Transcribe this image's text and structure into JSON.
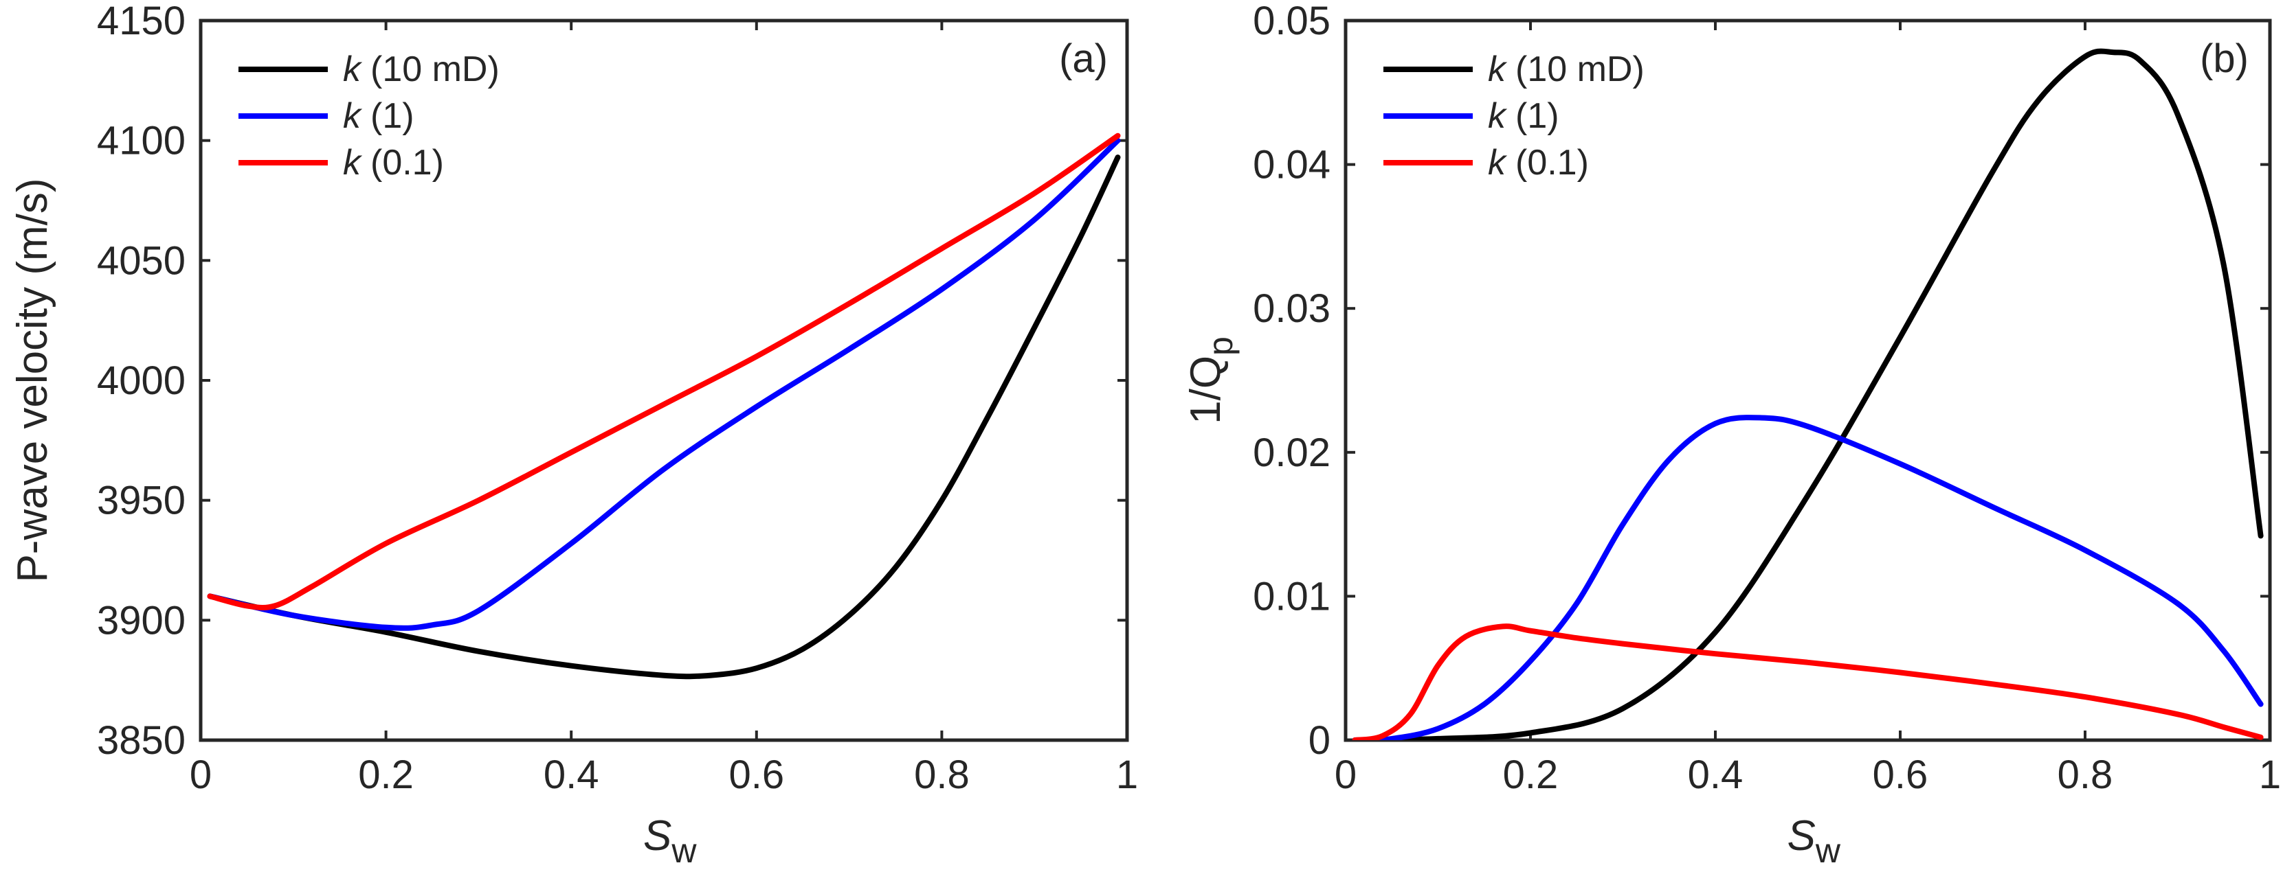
{
  "chart_data": [
    {
      "type": "line",
      "panel_label": "(a)",
      "xlabel": "S",
      "xlabel_sub": "w",
      "ylabel": "P-wave velocity (m/s)",
      "xlim": [
        0,
        1
      ],
      "ylim": [
        3850,
        4150
      ],
      "xticks": [
        0,
        0.2,
        0.4,
        0.6,
        0.8,
        1
      ],
      "xtick_labels": [
        "0",
        "0.2",
        "0.4",
        "0.6",
        "0.8",
        "1"
      ],
      "yticks": [
        3850,
        3900,
        3950,
        4000,
        4050,
        4100,
        4150
      ],
      "ytick_labels": [
        "3850",
        "3900",
        "3950",
        "4000",
        "4050",
        "4100",
        "4150"
      ],
      "legend_position": "top-left",
      "series": [
        {
          "name": "k (10 mD)",
          "legend_k": "k",
          "legend_rest": "(10 mD)",
          "color": "#000000",
          "x": [
            0.01,
            0.1,
            0.2,
            0.3,
            0.4,
            0.5,
            0.55,
            0.6,
            0.65,
            0.7,
            0.75,
            0.8,
            0.85,
            0.9,
            0.95,
            0.99
          ],
          "y": [
            3910,
            3902,
            3895,
            3887,
            3881,
            3877,
            3877,
            3880,
            3888,
            3902,
            3922,
            3950,
            3985,
            4022,
            4060,
            4093
          ]
        },
        {
          "name": "k (1)",
          "legend_k": "k",
          "legend_rest": "(1)",
          "color": "#0000ff",
          "x": [
            0.01,
            0.1,
            0.2,
            0.25,
            0.3,
            0.4,
            0.5,
            0.6,
            0.7,
            0.8,
            0.9,
            0.99
          ],
          "y": [
            3910,
            3902,
            3897,
            3898,
            3904,
            3932,
            3963,
            3989,
            4013,
            4038,
            4067,
            4100
          ]
        },
        {
          "name": "k (0.1)",
          "legend_k": "k",
          "legend_rest": "(0.1)",
          "color": "#ff0000",
          "x": [
            0.01,
            0.05,
            0.08,
            0.12,
            0.2,
            0.3,
            0.4,
            0.5,
            0.6,
            0.7,
            0.8,
            0.9,
            0.99
          ],
          "y": [
            3910,
            3906,
            3906,
            3914,
            3932,
            3950,
            3970,
            3990,
            4010,
            4032,
            4055,
            4078,
            4102
          ]
        }
      ]
    },
    {
      "type": "line",
      "panel_label": "(b)",
      "xlabel": "S",
      "xlabel_sub": "w",
      "ylabel": "1/Q",
      "ylabel_sub": "p",
      "xlim": [
        0,
        1
      ],
      "ylim": [
        0,
        0.05
      ],
      "xticks": [
        0,
        0.2,
        0.4,
        0.6,
        0.8,
        1
      ],
      "xtick_labels": [
        "0",
        "0.2",
        "0.4",
        "0.6",
        "0.8",
        "1"
      ],
      "yticks": [
        0,
        0.01,
        0.02,
        0.03,
        0.04,
        0.05
      ],
      "ytick_labels": [
        "0",
        "0.01",
        "0.02",
        "0.03",
        "0.04",
        "0.05"
      ],
      "legend_position": "top-left",
      "series": [
        {
          "name": "k (10 mD)",
          "legend_k": "k",
          "legend_rest": "(10 mD)",
          "color": "#000000",
          "x": [
            0.01,
            0.1,
            0.2,
            0.3,
            0.4,
            0.5,
            0.6,
            0.7,
            0.75,
            0.8,
            0.83,
            0.86,
            0.9,
            0.95,
            0.99
          ],
          "y": [
            0,
            0.0001,
            0.0005,
            0.0022,
            0.0075,
            0.017,
            0.028,
            0.0395,
            0.0445,
            0.0475,
            0.0478,
            0.0472,
            0.0435,
            0.033,
            0.0142
          ]
        },
        {
          "name": "k (1)",
          "legend_k": "k",
          "legend_rest": "(1)",
          "color": "#0000ff",
          "x": [
            0.01,
            0.05,
            0.1,
            0.15,
            0.2,
            0.25,
            0.3,
            0.35,
            0.4,
            0.45,
            0.5,
            0.6,
            0.7,
            0.8,
            0.9,
            0.95,
            0.99
          ],
          "y": [
            0,
            0.0001,
            0.0008,
            0.0025,
            0.0055,
            0.0095,
            0.015,
            0.0195,
            0.022,
            0.0224,
            0.0218,
            0.0192,
            0.0162,
            0.0132,
            0.0095,
            0.0062,
            0.0025
          ]
        },
        {
          "name": "k (0.1)",
          "legend_k": "k",
          "legend_rest": "(0.1)",
          "color": "#ff0000",
          "x": [
            0.01,
            0.04,
            0.07,
            0.1,
            0.13,
            0.17,
            0.2,
            0.25,
            0.3,
            0.4,
            0.5,
            0.6,
            0.7,
            0.8,
            0.9,
            0.95,
            0.99
          ],
          "y": [
            0,
            0.0003,
            0.0018,
            0.0052,
            0.0072,
            0.0079,
            0.0076,
            0.0071,
            0.0067,
            0.006,
            0.0054,
            0.0047,
            0.0039,
            0.003,
            0.0018,
            0.0009,
            0.0002
          ]
        }
      ]
    }
  ]
}
